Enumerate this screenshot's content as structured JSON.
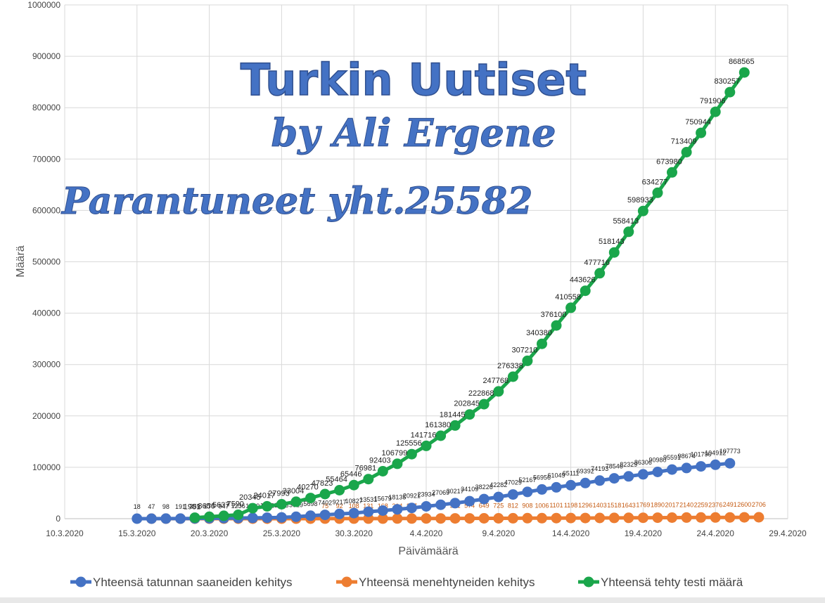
{
  "chart_data": {
    "type": "line",
    "xlabel": "Päivämäärä",
    "ylabel": "Määrä",
    "ylim": [
      0,
      1000000
    ],
    "y_ticks": [
      "0",
      "100000",
      "200000",
      "300000",
      "400000",
      "500000",
      "600000",
      "700000",
      "800000",
      "900000",
      "1000000"
    ],
    "x_ticks": [
      "10.3.2020",
      "15.3.2020",
      "20.3.2020",
      "25.3.2020",
      "30.3.2020",
      "4.4.2020",
      "9.4.2020",
      "14.4.2020",
      "19.4.2020",
      "24.4.2020",
      "29.4.2020"
    ],
    "grid": true,
    "legend_position": "bottom",
    "annotations": {
      "title": "Turkin Uutiset",
      "subtitle": "by Ali Ergene",
      "note": "Parantuneet yht.25582"
    },
    "series": [
      {
        "name": "Yhteensä tatunnan saaneiden kehitys",
        "color": "#4472c4",
        "start_date": "15.3.2020",
        "values": [
          18,
          47,
          98,
          191,
          359,
          670,
          947,
          1236,
          1529,
          1872,
          2433,
          3629,
          5698,
          7402,
          9217,
          10827,
          13531,
          15679,
          18135,
          20921,
          23934,
          27069,
          30217,
          34109,
          38226,
          42282,
          47029,
          52167,
          56956,
          61049,
          65111,
          69392,
          74193,
          78546,
          82329,
          86306,
          90980,
          95591,
          98674,
          101790,
          104912,
          107773
        ],
        "label_texts": [
          "18",
          "47",
          "98",
          "191",
          "359",
          "670",
          "947",
          "1236",
          "1529",
          "1872",
          "2433",
          "3629",
          "5698",
          "7402",
          "9217",
          "10827",
          "13531",
          "15679",
          "18135",
          "20921",
          "23934",
          "27069",
          "30217",
          "34109",
          "38226",
          "42282",
          "47029",
          "52167",
          "56956",
          "61049",
          "65111",
          "69392",
          "74193",
          "78546",
          "82329",
          "86306",
          "90980",
          "95591",
          "98674",
          "101790",
          "104912",
          "107773"
        ]
      },
      {
        "name": "Yhteensä menehtyneiden kehitys",
        "color": "#ed7d31",
        "start_date": "16.3.2020",
        "values": [
          1,
          1,
          1,
          2,
          3,
          4,
          9,
          21,
          30,
          37,
          44,
          59,
          75,
          92,
          108,
          131,
          168,
          214,
          277,
          356,
          425,
          501,
          574,
          649,
          725,
          812,
          908,
          1006,
          1101,
          1198,
          1296,
          1403,
          1518,
          1643,
          1769,
          1890,
          2017,
          2140,
          2259,
          2376,
          2491,
          2600,
          2706
        ],
        "label_texts": [
          "",
          "",
          "",
          "",
          "",
          "",
          "",
          "",
          "",
          "",
          "",
          "",
          "75",
          "92",
          "108",
          "131",
          "168",
          "214",
          "277",
          "356",
          "425",
          "501",
          "574",
          "649",
          "725",
          "812",
          "908",
          "1006",
          "1101",
          "1198",
          "1296",
          "1403",
          "1518",
          "1643",
          "1769",
          "1890",
          "2017",
          "2140",
          "2259",
          "2376",
          "2491",
          "2600",
          "2706"
        ]
      },
      {
        "name": "Yhteensä tehty testi määrä",
        "color": "#1aa64b",
        "start_date": "19.3.2020",
        "values": [
          1981,
          3656,
          5637,
          7590,
          20345,
          24017,
          27993,
          33004,
          40270,
          47823,
          55464,
          65446,
          76981,
          92403,
          106799,
          125556,
          141716,
          161380,
          181445,
          202845,
          222868,
          247768,
          276338,
          307210,
          340380,
          376100,
          410558,
          443626,
          477716,
          518143,
          558413,
          598933,
          634277,
          673980,
          713409,
          750944,
          791906,
          830257,
          868565
        ],
        "label_texts": [
          "1981",
          "3656",
          "5637",
          "7590",
          "20345",
          "24017",
          "27993",
          "33004",
          "40270",
          "47823",
          "55464",
          "65446",
          "76981",
          "92403",
          "106799",
          "125556",
          "141716",
          "161380",
          "181445",
          "202845",
          "222868",
          "247768",
          "276338",
          "307210",
          "340380",
          "376100",
          "410558",
          "443626",
          "477716",
          "518143",
          "558413",
          "598933",
          "634277",
          "673980",
          "713409",
          "750944",
          "791906",
          "830257",
          "868565"
        ]
      }
    ]
  }
}
